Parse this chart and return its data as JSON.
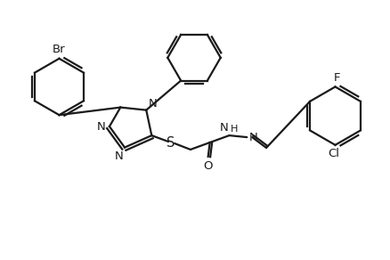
{
  "background_color": "#ffffff",
  "line_color": "#1a1a1a",
  "line_width": 1.6,
  "font_size": 9.5,
  "figsize": [
    4.38,
    2.92
  ],
  "dpi": 100,
  "atoms": {
    "Br": "Br",
    "N": "N",
    "S": "S",
    "O": "O",
    "F": "F",
    "Cl": "Cl",
    "H": "H"
  }
}
